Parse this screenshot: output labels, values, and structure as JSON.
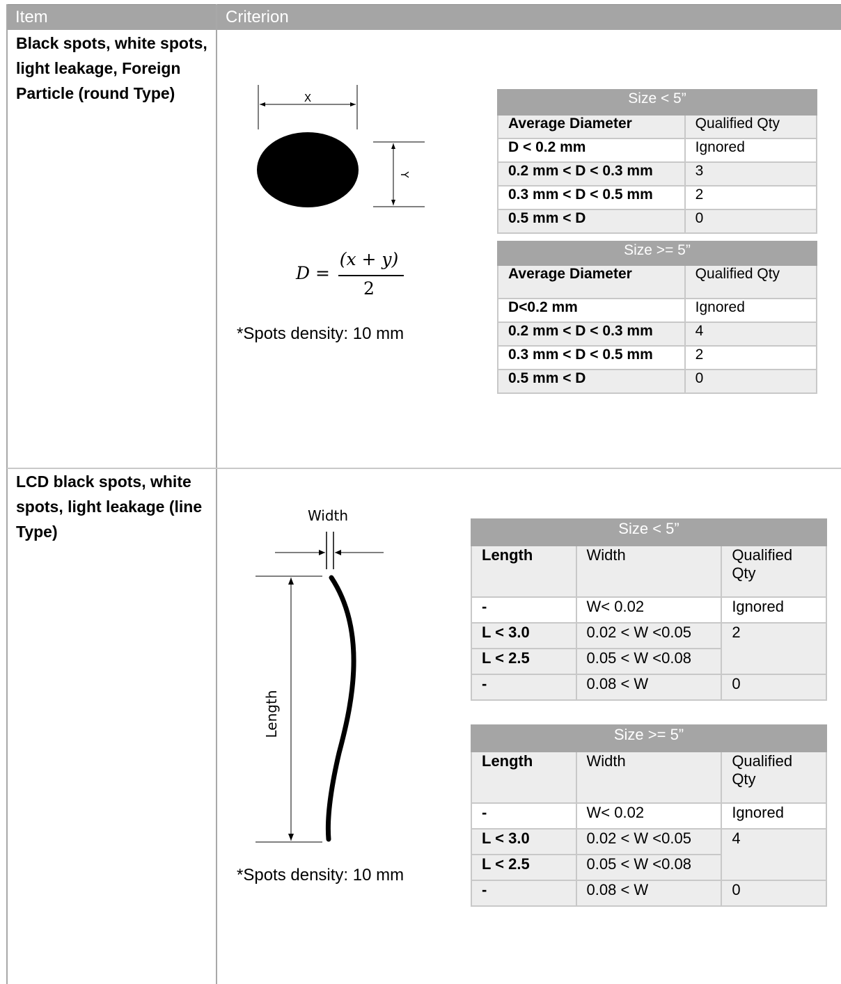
{
  "header": {
    "item": "Item",
    "criterion": "Criterion"
  },
  "rows": [
    {
      "item": "Black spots, white spots, light leakage, Foreign Particle (round Type)",
      "diagram": {
        "x_label": "X",
        "y_label": "Y"
      },
      "formula": {
        "lhs": "D =",
        "numerator": "(x + y)",
        "denominator": "2"
      },
      "note": "*Spots density: 10 mm",
      "tables": [
        {
          "caption": "Size < 5”",
          "columns": [
            "Average Diameter",
            "Qualified Qty"
          ],
          "rows": [
            [
              "D < 0.2 mm",
              "Ignored"
            ],
            [
              "0.2 mm < D < 0.3 mm",
              "3"
            ],
            [
              "0.3 mm < D < 0.5 mm",
              "2"
            ],
            [
              "0.5 mm < D",
              "0"
            ]
          ]
        },
        {
          "caption": "Size >= 5”",
          "columns": [
            "Average Diameter",
            "Qualified Qty"
          ],
          "rows": [
            [
              "D<0.2 mm",
              "Ignored"
            ],
            [
              "0.2 mm < D < 0.3 mm",
              "4"
            ],
            [
              "0.3 mm < D < 0.5 mm",
              "2"
            ],
            [
              "0.5 mm < D",
              "0"
            ]
          ]
        }
      ]
    },
    {
      "item": "LCD black spots, white spots, light leakage (line Type)",
      "diagram": {
        "width_label": "Width",
        "length_label": "Length"
      },
      "note": "*Spots density: 10 mm",
      "tables": [
        {
          "caption": "Size < 5”",
          "columns": [
            "Length",
            "Width",
            "Qualified Qty"
          ],
          "rows": [
            [
              "-",
              "W< 0.02",
              "Ignored"
            ],
            [
              "L < 3.0",
              "0.02 < W <0.05",
              "2"
            ],
            [
              "L < 2.5",
              "0.05 < W <0.08",
              ""
            ],
            [
              "-",
              "0.08 < W",
              "0"
            ]
          ]
        },
        {
          "caption": "Size >= 5”",
          "columns": [
            "Length",
            "Width",
            "Qualified Qty"
          ],
          "rows": [
            [
              "-",
              "W< 0.02",
              "Ignored"
            ],
            [
              "L < 3.0",
              "0.02 < W <0.05",
              "4"
            ],
            [
              "L < 2.5",
              "0.05 < W <0.08",
              ""
            ],
            [
              "-",
              "0.08 < W",
              "0"
            ]
          ]
        }
      ]
    }
  ],
  "colors": {
    "header_bg": "#a5a5a5",
    "row_shade": "#ededed",
    "grid": "#c8c8c8"
  }
}
